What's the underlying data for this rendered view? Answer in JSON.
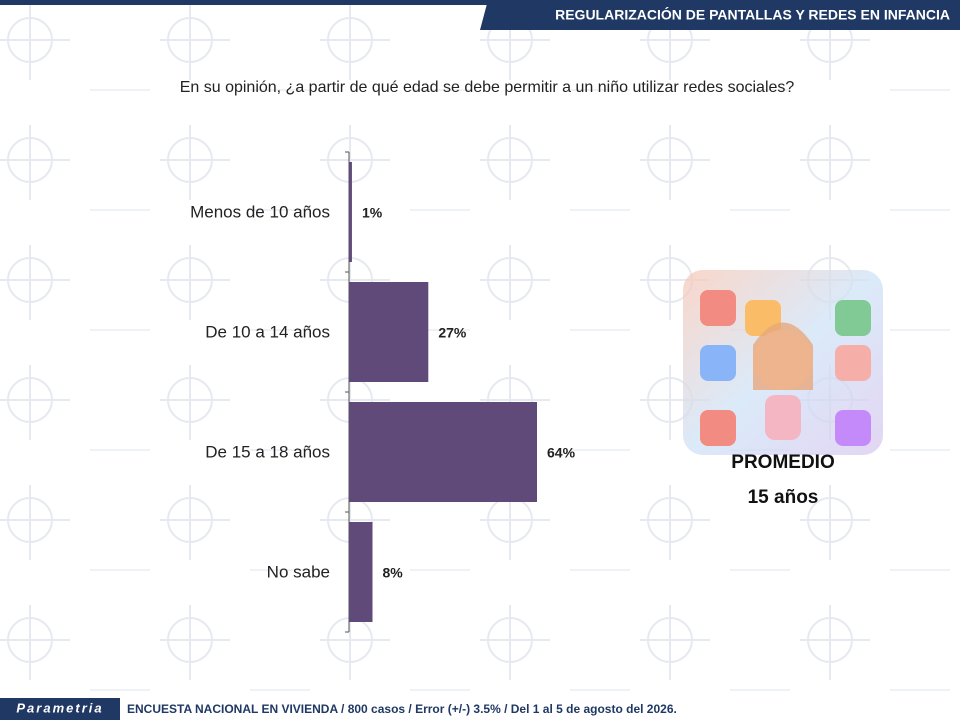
{
  "header": {
    "title": "REGULARIZACIÓN DE PANTALLAS Y REDES EN INFANCIA"
  },
  "chart_data": {
    "type": "hbar",
    "title": "En su opinión, ¿a partir de qué edad se debe permitir a un niño utilizar redes sociales?",
    "categories": [
      "Menos de 10 años",
      "De 10 a  14 años",
      "De 15 a  18 años",
      "No sabe"
    ],
    "values": [
      1,
      27,
      64,
      8
    ],
    "value_labels": [
      "1%",
      "27%",
      "64%",
      "8%"
    ],
    "color": "#5f4a7a"
  },
  "callout": {
    "label": "PROMEDIO",
    "value": "15 años"
  },
  "footer": {
    "logo": "Parametria",
    "note": "ENCUESTA NACIONAL EN VIVIENDA / 800 casos / Error (+/-) 3.5% / Del 1 al 5 de agosto del 2026."
  }
}
